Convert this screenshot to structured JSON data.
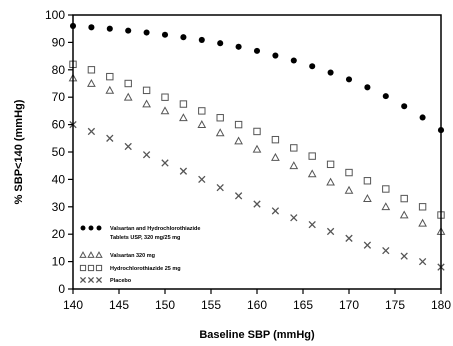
{
  "chart_data": {
    "type": "scatter",
    "xlabel": "Baseline SBP (mmHg)",
    "ylabel": "% SBP<140 (mmHg)",
    "xlim": [
      140,
      180
    ],
    "ylim": [
      0,
      100
    ],
    "xticks": [
      "140",
      "145",
      "150",
      "155",
      "160",
      "165",
      "170",
      "175",
      "180"
    ],
    "yticks": [
      "0",
      "10",
      "20",
      "30",
      "40",
      "50",
      "60",
      "70",
      "80",
      "90",
      "100"
    ],
    "grid": false,
    "legend_position": "bottom-left",
    "legend": [
      {
        "marker": "filled-circle",
        "lines": [
          "Valsartan and Hydrochlorothiazide",
          "Tablets USP, 320 mg/25 mg"
        ]
      },
      {
        "marker": "triangle",
        "lines": [
          "Valsartan 320 mg"
        ]
      },
      {
        "marker": "square",
        "lines": [
          "Hydrochlorothiazide 25 mg"
        ]
      },
      {
        "marker": "cross",
        "lines": [
          "Placebo"
        ]
      }
    ],
    "x": [
      140,
      142,
      144,
      146,
      148,
      150,
      152,
      154,
      156,
      158,
      160,
      162,
      164,
      166,
      168,
      170,
      172,
      174,
      176,
      178,
      180
    ],
    "series": [
      {
        "name": "Valsartan and Hydrochlorothiazide Tablets USP, 320 mg/25 mg",
        "marker": "filled-circle",
        "values": [
          96,
          95.5,
          95,
          94.3,
          93.6,
          92.8,
          91.9,
          90.9,
          89.7,
          88.4,
          86.9,
          85.2,
          83.4,
          81.3,
          79,
          76.5,
          73.6,
          70.4,
          66.7,
          62.6,
          58
        ]
      },
      {
        "name": "Hydrochlorothiazide 25 mg",
        "marker": "square",
        "values": [
          82,
          80,
          77.5,
          75,
          72.5,
          70,
          67.5,
          65,
          62.5,
          60,
          57.5,
          54.5,
          51.5,
          48.5,
          45.5,
          42.5,
          39.5,
          36.5,
          33,
          30,
          27
        ]
      },
      {
        "name": "Valsartan 320 mg",
        "marker": "triangle",
        "values": [
          77,
          75,
          72.5,
          70,
          67.5,
          65,
          62.5,
          60,
          57,
          54,
          51,
          48,
          45,
          42,
          39,
          36,
          33,
          30,
          27,
          24,
          21
        ]
      },
      {
        "name": "Placebo",
        "marker": "cross",
        "values": [
          60,
          57.5,
          55,
          52,
          49,
          46,
          43,
          40,
          37,
          34,
          31,
          28.5,
          26,
          23.5,
          21,
          18.5,
          16,
          14,
          12,
          10,
          8
        ]
      }
    ]
  }
}
